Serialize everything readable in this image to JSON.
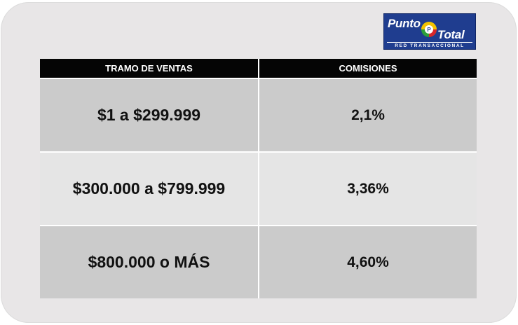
{
  "logo": {
    "word1": "Punto",
    "word2": "Total",
    "subtitle": "RED TRANSACCIONAL"
  },
  "table": {
    "headers": [
      "TRAMO DE VENTAS",
      "COMISIONES"
    ],
    "rows": [
      {
        "tramo": "$1 a $299.999",
        "comision": "2,1%"
      },
      {
        "tramo": "$300.000 a $799.999",
        "comision": "3,36%"
      },
      {
        "tramo": "$800.000 o MÁS",
        "comision": "4,60%"
      }
    ]
  },
  "colors": {
    "header_bg": "#050505",
    "row_dark": "#cbcbcb",
    "row_light": "#e5e5e5",
    "logo_blue": "#1f3d8f"
  }
}
